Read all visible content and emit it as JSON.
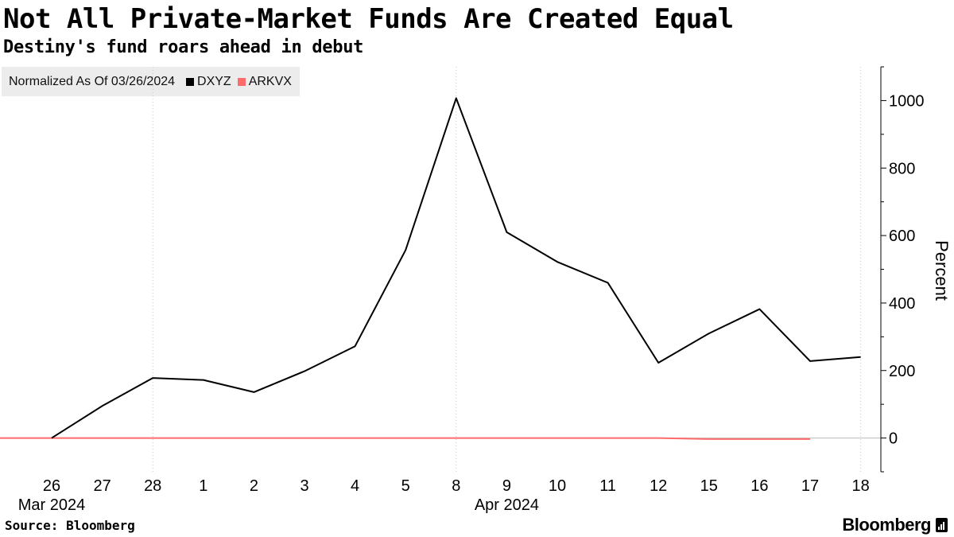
{
  "title": "Not All Private-Market Funds Are Created Equal",
  "subtitle": "Destiny's fund roars ahead in debut",
  "legend": {
    "normalized": "Normalized As Of 03/26/2024",
    "items": [
      {
        "label": "DXYZ",
        "color": "#000000"
      },
      {
        "label": "ARKVX",
        "color": "#ff6b6b"
      }
    ]
  },
  "source": "Source: Bloomberg",
  "brand": {
    "name": "Bloomberg",
    "icon": "bloomberg-terminal-icon"
  },
  "chart_data": {
    "type": "line",
    "x": [
      "26",
      "27",
      "28",
      "1",
      "2",
      "3",
      "4",
      "5",
      "8",
      "9",
      "10",
      "11",
      "12",
      "15",
      "16",
      "17",
      "18"
    ],
    "month_labels": [
      {
        "label": "Mar 2024",
        "at": "26"
      },
      {
        "label": "Apr 2024",
        "at": "9"
      }
    ],
    "series": [
      {
        "name": "DXYZ",
        "color": "#000000",
        "values": [
          0,
          95,
          178,
          172,
          136,
          198,
          272,
          557,
          1007,
          610,
          522,
          460,
          223,
          310,
          382,
          228,
          240
        ]
      },
      {
        "name": "ARKVX",
        "color": "#ff6b6b",
        "values": [
          0,
          0,
          0,
          0,
          0,
          0,
          0,
          0,
          0,
          0,
          0,
          0,
          0,
          -3,
          -3,
          -3,
          null
        ]
      }
    ],
    "ylabel": "Percent",
    "ylim": [
      -100,
      1100
    ],
    "yticks": [
      0,
      200,
      400,
      600,
      800,
      1000
    ],
    "grid": "vertical-dotted",
    "legend_position": "top-left"
  }
}
